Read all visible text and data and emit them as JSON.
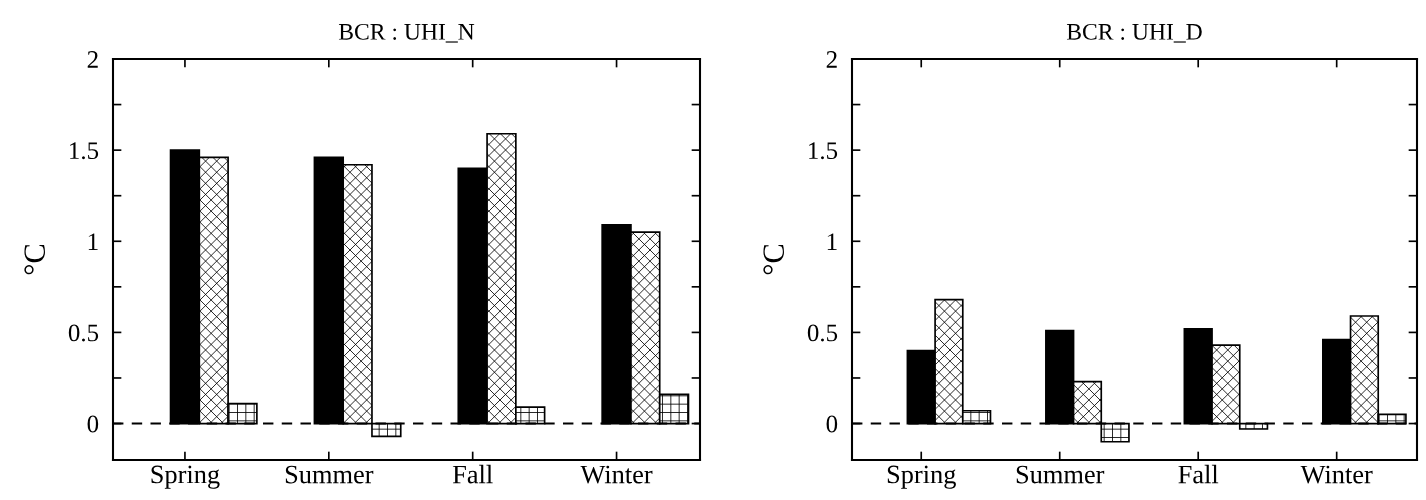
{
  "chart_data": [
    {
      "type": "bar",
      "title": "BCR : UHI_N",
      "ylabel": "°C",
      "categories": [
        "Spring",
        "Summer",
        "Fall",
        "Winter"
      ],
      "series": [
        {
          "color": "#000000",
          "values": [
            1.5,
            1.46,
            1.4,
            1.09
          ]
        },
        {
          "color": "#ffffff",
          "values": [
            1.46,
            1.42,
            1.59,
            1.05
          ]
        },
        {
          "color": "#ffffff",
          "values": [
            0.11,
            -0.07,
            0.09,
            0.16
          ]
        }
      ],
      "ylim": [
        -0.2,
        2
      ],
      "yticks": [
        0,
        {
          "value": 0.25,
          "label": null
        },
        0.5,
        {
          "value": 0.75,
          "label": null
        },
        1,
        {
          "value": 1.25,
          "label": null
        },
        1.5,
        {
          "value": 1.75,
          "label": null
        },
        2
      ],
      "ref_lines": [
        {
          "axis": "y",
          "value": 0,
          "line_style": "dashed",
          "color": "#000000"
        }
      ],
      "grid": false
    },
    {
      "type": "bar",
      "title": "BCR : UHI_D",
      "ylabel": "°C",
      "categories": [
        "Spring",
        "Summer",
        "Fall",
        "Winter"
      ],
      "series": [
        {
          "color": "#000000",
          "values": [
            0.4,
            0.51,
            0.52,
            0.46
          ]
        },
        {
          "color": "#ffffff",
          "values": [
            0.68,
            0.23,
            0.43,
            0.59
          ]
        },
        {
          "color": "#ffffff",
          "values": [
            0.07,
            -0.1,
            -0.03,
            0.05
          ]
        }
      ],
      "ylim": [
        -0.2,
        2
      ],
      "yticks": [
        0,
        {
          "value": 0.25,
          "label": null
        },
        0.5,
        {
          "value": 0.75,
          "label": null
        },
        1,
        {
          "value": 1.25,
          "label": null
        },
        1.5,
        {
          "value": 1.75,
          "label": null
        },
        2
      ],
      "ref_lines": [
        {
          "axis": "y",
          "value": 0,
          "line_style": "dashed",
          "color": "#000000"
        }
      ],
      "grid": false
    }
  ]
}
